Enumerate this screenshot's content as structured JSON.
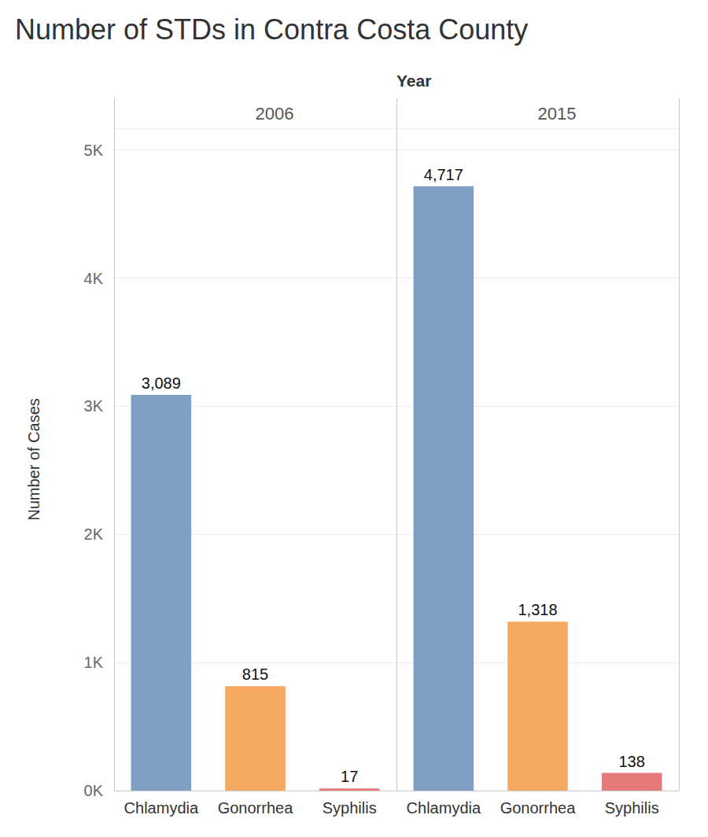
{
  "chart_data": {
    "type": "bar",
    "title": "Number of STDs in Contra Costa County",
    "facet_title": "Year",
    "y_label": "Number of Cases",
    "ylim": [
      0,
      5170
    ],
    "yticks": [
      {
        "value": 0,
        "label": "0K"
      },
      {
        "value": 1000,
        "label": "1K"
      },
      {
        "value": 2000,
        "label": "2K"
      },
      {
        "value": 3000,
        "label": "3K"
      },
      {
        "value": 4000,
        "label": "4K"
      },
      {
        "value": 5000,
        "label": "5K"
      }
    ],
    "grid": true,
    "data_labels": true,
    "categories": [
      "Chlamydia",
      "Gonorrhea",
      "Syphilis"
    ],
    "colors": [
      "#7f9fc3",
      "#f5a962",
      "#e8797b"
    ],
    "facets": [
      {
        "facet": "2006",
        "values": [
          3089,
          815,
          17
        ],
        "value_labels": [
          "3,089",
          "815",
          "17"
        ]
      },
      {
        "facet": "2015",
        "values": [
          4717,
          1318,
          138
        ],
        "value_labels": [
          "4,717",
          "1,318",
          "138"
        ]
      }
    ]
  }
}
